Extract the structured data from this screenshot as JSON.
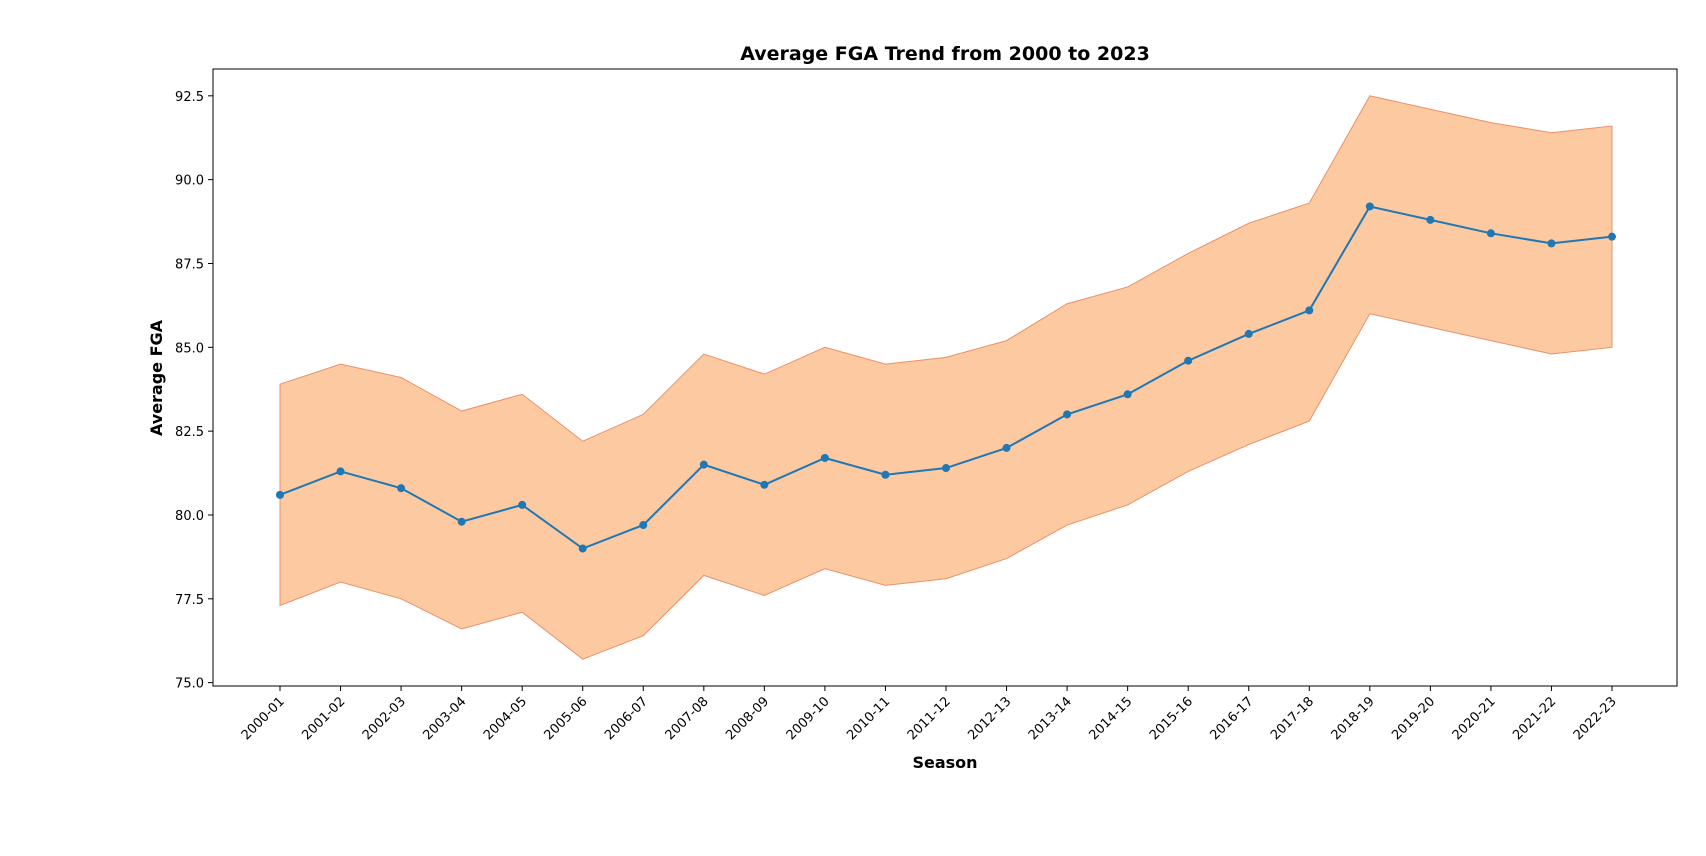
{
  "chart_data": {
    "type": "line",
    "title": "Average FGA Trend from 2000 to 2023",
    "xlabel": "Season",
    "ylabel": "Average FGA",
    "ylim": [
      74.9,
      93.3
    ],
    "yticks": [
      "75.0",
      "77.5",
      "80.0",
      "82.5",
      "85.0",
      "87.5",
      "90.0",
      "92.5"
    ],
    "grid": false,
    "categories": [
      "2000-01",
      "2001-02",
      "2002-03",
      "2003-04",
      "2004-05",
      "2005-06",
      "2006-07",
      "2007-08",
      "2008-09",
      "2009-10",
      "2010-11",
      "2011-12",
      "2012-13",
      "2013-14",
      "2014-15",
      "2015-16",
      "2016-17",
      "2017-18",
      "2018-19",
      "2019-20",
      "2020-21",
      "2021-22",
      "2022-23"
    ],
    "values": [
      80.6,
      81.3,
      80.8,
      79.8,
      80.3,
      79.0,
      79.7,
      81.5,
      80.9,
      81.7,
      81.2,
      81.4,
      82.0,
      83.0,
      83.6,
      84.6,
      85.4,
      86.1,
      89.2,
      88.8,
      88.4,
      88.1,
      88.3
    ],
    "band_upper": [
      83.9,
      84.5,
      84.1,
      83.1,
      83.6,
      82.2,
      83.0,
      84.8,
      84.2,
      85.0,
      84.5,
      84.7,
      85.2,
      86.3,
      86.8,
      87.8,
      88.7,
      89.3,
      92.5,
      92.1,
      91.7,
      91.4,
      91.6
    ],
    "band_lower": [
      77.3,
      78.0,
      77.5,
      76.6,
      77.1,
      75.7,
      76.4,
      78.2,
      77.6,
      78.4,
      77.9,
      78.1,
      78.7,
      79.7,
      80.3,
      81.3,
      82.1,
      82.8,
      86.0,
      85.6,
      85.2,
      84.8,
      85.0
    ],
    "colors": {
      "line": "#1f77b4",
      "band_fill": "#fdc9a1",
      "band_edge": "#e8916a"
    }
  }
}
